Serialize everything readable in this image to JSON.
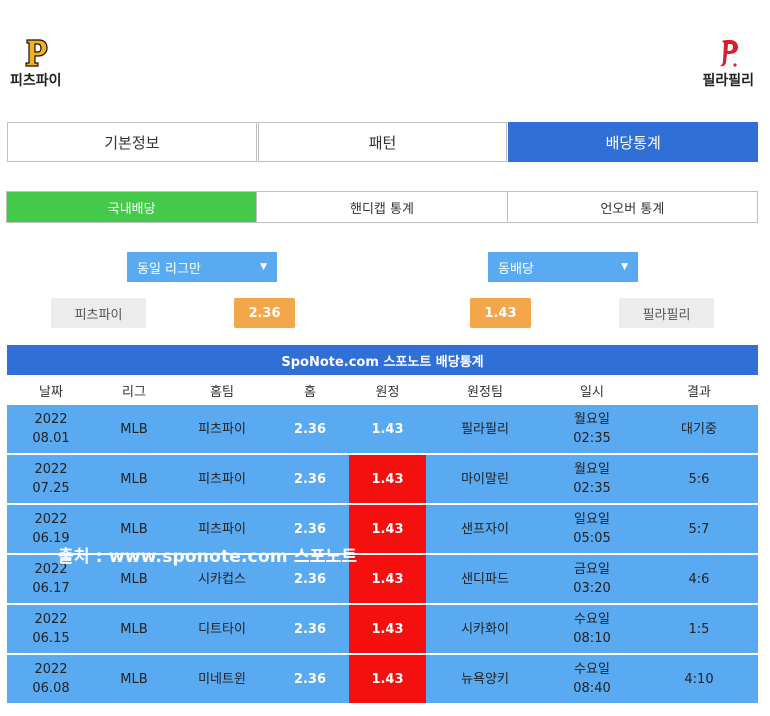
{
  "teams": {
    "home": {
      "name": "피츠파이",
      "logo_icon": "pirates-p-logo-icon",
      "logo_color": "#f6b11a"
    },
    "away": {
      "name": "필라필리",
      "logo_icon": "phillies-p-logo-icon",
      "logo_color": "#d8202c"
    }
  },
  "tabs": [
    {
      "label": "기본정보"
    },
    {
      "label": "패턴"
    },
    {
      "label": "배당통계",
      "active": true
    }
  ],
  "subtabs": [
    {
      "label": "국내배당",
      "active": true
    },
    {
      "label": "핸디캡 통계"
    },
    {
      "label": "언오버 통계"
    }
  ],
  "filters": {
    "league": "동일 리그만",
    "odds": "동배당"
  },
  "odds_summary": {
    "home_team": "피츠파이",
    "home_odds": "2.36",
    "away_odds": "1.43",
    "away_team": "필라필리"
  },
  "table": {
    "title": "SpoNote.com 스포노트 배당통계",
    "headers": [
      "날짜",
      "리그",
      "홈팀",
      "홈",
      "원정",
      "원정팀",
      "일시",
      "결과"
    ],
    "rows": [
      {
        "year": "2022",
        "date": "08.01",
        "league": "MLB",
        "home_team": "피츠파이",
        "home_odds": "2.36",
        "away_odds": "1.43",
        "away_team": "필라필리",
        "day": "월요일",
        "time": "02:35",
        "result": "대기중",
        "highlight": false
      },
      {
        "year": "2022",
        "date": "07.25",
        "league": "MLB",
        "home_team": "피츠파이",
        "home_odds": "2.36",
        "away_odds": "1.43",
        "away_team": "마이말린",
        "day": "월요일",
        "time": "02:35",
        "result": "5:6",
        "highlight": true
      },
      {
        "year": "2022",
        "date": "06.19",
        "league": "MLB",
        "home_team": "피츠파이",
        "home_odds": "2.36",
        "away_odds": "1.43",
        "away_team": "샌프자이",
        "day": "일요일",
        "time": "05:05",
        "result": "5:7",
        "highlight": true
      },
      {
        "year": "2022",
        "date": "06.17",
        "league": "MLB",
        "home_team": "시카컵스",
        "home_odds": "2.36",
        "away_odds": "1.43",
        "away_team": "샌디파드",
        "day": "금요일",
        "time": "03:20",
        "result": "4:6",
        "highlight": true
      },
      {
        "year": "2022",
        "date": "06.15",
        "league": "MLB",
        "home_team": "디트타이",
        "home_odds": "2.36",
        "away_odds": "1.43",
        "away_team": "시카화이",
        "day": "수요일",
        "time": "08:10",
        "result": "1:5",
        "highlight": true
      },
      {
        "year": "2022",
        "date": "06.08",
        "league": "MLB",
        "home_team": "미네트윈",
        "home_odds": "2.36",
        "away_odds": "1.43",
        "away_team": "뉴욕양키",
        "day": "수요일",
        "time": "08:40",
        "result": "4:10",
        "highlight": true
      }
    ]
  },
  "watermark": "출처 : www.sponote.com 스포노트"
}
